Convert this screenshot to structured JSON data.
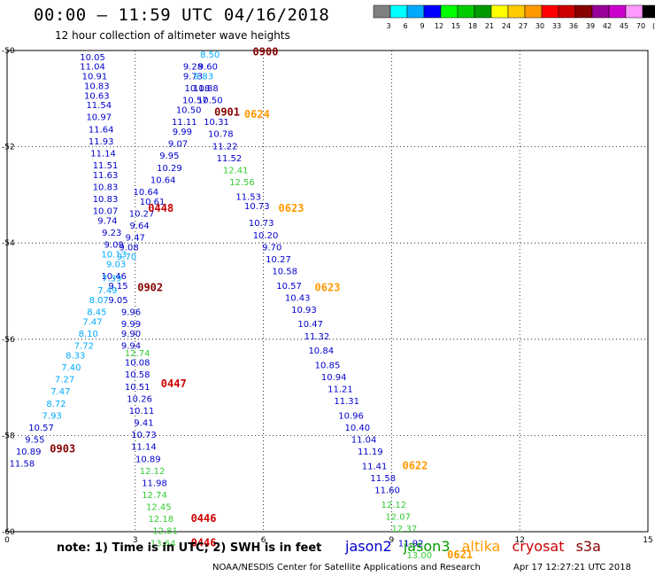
{
  "header": {
    "title": "00:00 – 11:59 UTC 04/16/2018",
    "subtitle": "12 hour collection of altimeter wave heights"
  },
  "colorbar": {
    "labels": [
      "3",
      "6",
      "9",
      "12",
      "15",
      "18",
      "21",
      "24",
      "27",
      "30",
      "33",
      "36",
      "39",
      "42",
      "45",
      "70",
      "(ft)"
    ],
    "colors": [
      "#808080",
      "#00ffff",
      "#00aaff",
      "#0000ff",
      "#00ff00",
      "#00cc00",
      "#009900",
      "#ffff00",
      "#ffcc00",
      "#ff9900",
      "#ff0000",
      "#cc0000",
      "#880000",
      "#990099",
      "#cc00cc",
      "#ff99ff",
      "#000000"
    ]
  },
  "footer": {
    "note": "note: 1) Time is in UTC; 2) SWH is in feet",
    "credit": "NOAA/NESDIS Center for Satellite Applications and Research",
    "timestamp": "Apr 17 12:27:21 UTC 2018",
    "legend": [
      {
        "label": "jason2",
        "color": "#0000cc"
      },
      {
        "label": "jason3",
        "color": "#009900"
      },
      {
        "label": "altika",
        "color": "#ff9900"
      },
      {
        "label": "cryosat",
        "color": "#cc0000"
      },
      {
        "label": "s3a",
        "color": "#880000"
      }
    ]
  },
  "chart_data": {
    "type": "scatter",
    "xlim": [
      0,
      15
    ],
    "ylim": [
      -60,
      -50
    ],
    "x_ticks": [
      "0",
      "3",
      "6",
      "9",
      "12",
      "15"
    ],
    "y_ticks": [
      "-50",
      "-52",
      "-54",
      "-56",
      "-58",
      "-60"
    ],
    "grid": true,
    "points": [
      {
        "x": 2.0,
        "y": -50.2,
        "v": "10.05",
        "c": "#0000cc"
      },
      {
        "x": 2.0,
        "y": -50.4,
        "v": "11.04",
        "c": "#0000cc"
      },
      {
        "x": 2.05,
        "y": -50.6,
        "v": "10.91",
        "c": "#0000cc"
      },
      {
        "x": 2.1,
        "y": -50.8,
        "v": "10.83",
        "c": "#0000cc"
      },
      {
        "x": 2.1,
        "y": -51.0,
        "v": "10.63",
        "c": "#0000cc"
      },
      {
        "x": 2.15,
        "y": -51.2,
        "v": "11.54",
        "c": "#0000cc"
      },
      {
        "x": 2.15,
        "y": -51.45,
        "v": "10.97",
        "c": "#0000cc"
      },
      {
        "x": 2.2,
        "y": -51.7,
        "v": "11.64",
        "c": "#0000cc"
      },
      {
        "x": 2.2,
        "y": -51.95,
        "v": "11.93",
        "c": "#0000cc"
      },
      {
        "x": 2.25,
        "y": -52.2,
        "v": "11.14",
        "c": "#0000cc"
      },
      {
        "x": 2.3,
        "y": -52.45,
        "v": "11.51",
        "c": "#0000cc"
      },
      {
        "x": 2.3,
        "y": -52.65,
        "v": "11.63",
        "c": "#0000cc"
      },
      {
        "x": 2.3,
        "y": -52.9,
        "v": "10.83",
        "c": "#0000cc"
      },
      {
        "x": 2.3,
        "y": -53.15,
        "v": "10.83",
        "c": "#0000cc"
      },
      {
        "x": 2.3,
        "y": -53.4,
        "v": "10.07",
        "c": "#0000cc"
      },
      {
        "x": 2.35,
        "y": -53.6,
        "v": "9.74",
        "c": "#0000cc"
      },
      {
        "x": 2.45,
        "y": -53.85,
        "v": "9.23",
        "c": "#0000cc"
      },
      {
        "x": 2.5,
        "y": -54.1,
        "v": "9.09",
        "c": "#0000cc"
      },
      {
        "x": 2.5,
        "y": -54.3,
        "v": "10.13",
        "c": "#00aaff"
      },
      {
        "x": 2.55,
        "y": -54.5,
        "v": "9.03",
        "c": "#00aaff"
      },
      {
        "x": 2.5,
        "y": -54.75,
        "v": "10.46",
        "c": "#0000cc"
      },
      {
        "x": 2.45,
        "y": -54.8,
        "v": "7.39",
        "c": "#00aaff"
      },
      {
        "x": 2.6,
        "y": -54.95,
        "v": "9.15",
        "c": "#0000cc"
      },
      {
        "x": 2.35,
        "y": -55.05,
        "v": "7.49",
        "c": "#00aaff"
      },
      {
        "x": 2.15,
        "y": -55.25,
        "v": "8.07",
        "c": "#00aaff"
      },
      {
        "x": 2.6,
        "y": -55.25,
        "v": "9.05",
        "c": "#0000cc"
      },
      {
        "x": 2.1,
        "y": -55.5,
        "v": "8.45",
        "c": "#00aaff"
      },
      {
        "x": 2.9,
        "y": -55.5,
        "v": "9.96",
        "c": "#0000cc"
      },
      {
        "x": 2.0,
        "y": -55.7,
        "v": "7.47",
        "c": "#00aaff"
      },
      {
        "x": 2.9,
        "y": -55.75,
        "v": "9.99",
        "c": "#0000cc"
      },
      {
        "x": 1.9,
        "y": -55.95,
        "v": "8.10",
        "c": "#00aaff"
      },
      {
        "x": 2.9,
        "y": -55.95,
        "v": "9.90",
        "c": "#0000cc"
      },
      {
        "x": 1.8,
        "y": -56.2,
        "v": "7.72",
        "c": "#00aaff"
      },
      {
        "x": 2.9,
        "y": -56.2,
        "v": "9.94",
        "c": "#0000cc"
      },
      {
        "x": 1.6,
        "y": -56.4,
        "v": "8.33",
        "c": "#00aaff"
      },
      {
        "x": 3.05,
        "y": -56.35,
        "v": "12.74",
        "c": "#33cc33"
      },
      {
        "x": 1.5,
        "y": -56.65,
        "v": "7.40",
        "c": "#00aaff"
      },
      {
        "x": 3.05,
        "y": -56.55,
        "v": "10.08",
        "c": "#0000cc"
      },
      {
        "x": 1.35,
        "y": -56.9,
        "v": "7.27",
        "c": "#00aaff"
      },
      {
        "x": 3.05,
        "y": -56.8,
        "v": "10.58",
        "c": "#0000cc"
      },
      {
        "x": 1.25,
        "y": -57.15,
        "v": "7.47",
        "c": "#00aaff"
      },
      {
        "x": 3.05,
        "y": -57.05,
        "v": "10.51",
        "c": "#0000cc"
      },
      {
        "x": 1.15,
        "y": -57.4,
        "v": "8.72",
        "c": "#00aaff"
      },
      {
        "x": 3.1,
        "y": -57.3,
        "v": "10.26",
        "c": "#0000cc"
      },
      {
        "x": 1.05,
        "y": -57.65,
        "v": "7.93",
        "c": "#00aaff"
      },
      {
        "x": 3.15,
        "y": -57.55,
        "v": "10.11",
        "c": "#0000cc"
      },
      {
        "x": 0.8,
        "y": -57.9,
        "v": "10.57",
        "c": "#0000cc"
      },
      {
        "x": 3.2,
        "y": -57.8,
        "v": "9.41",
        "c": "#0000cc"
      },
      {
        "x": 0.65,
        "y": -58.15,
        "v": "9.55",
        "c": "#0000cc"
      },
      {
        "x": 3.2,
        "y": -58.05,
        "v": "10.73",
        "c": "#0000cc"
      },
      {
        "x": 0.5,
        "y": -58.4,
        "v": "10.89",
        "c": "#0000cc"
      },
      {
        "x": 3.2,
        "y": -58.3,
        "v": "11.14",
        "c": "#0000cc"
      },
      {
        "x": 0.35,
        "y": -58.65,
        "v": "11.58",
        "c": "#0000cc"
      },
      {
        "x": 3.3,
        "y": -58.55,
        "v": "10.89",
        "c": "#0000cc"
      },
      {
        "x": 3.4,
        "y": -58.8,
        "v": "12.12",
        "c": "#33cc33"
      },
      {
        "x": 3.45,
        "y": -59.05,
        "v": "11.98",
        "c": "#0000cc"
      },
      {
        "x": 3.45,
        "y": -59.3,
        "v": "12.74",
        "c": "#33cc33"
      },
      {
        "x": 3.55,
        "y": -59.55,
        "v": "12.45",
        "c": "#33cc33"
      },
      {
        "x": 3.6,
        "y": -59.8,
        "v": "12.18",
        "c": "#33cc33"
      },
      {
        "x": 3.7,
        "y": -60.05,
        "v": "12.81",
        "c": "#33cc33"
      },
      {
        "x": 3.65,
        "y": -60.3,
        "v": "13.64",
        "c": "#33cc33"
      },
      {
        "x": 3.4,
        "y": -53.2,
        "v": "10.61",
        "c": "#0000cc"
      },
      {
        "x": 3.25,
        "y": -53.0,
        "v": "10.64",
        "c": "#0000cc"
      },
      {
        "x": 3.65,
        "y": -52.75,
        "v": "10.64",
        "c": "#0000cc"
      },
      {
        "x": 3.8,
        "y": -52.5,
        "v": "10.29",
        "c": "#0000cc"
      },
      {
        "x": 3.8,
        "y": -52.25,
        "v": "9.95",
        "c": "#0000cc"
      },
      {
        "x": 4.0,
        "y": -52.0,
        "v": "9.07",
        "c": "#0000cc"
      },
      {
        "x": 4.1,
        "y": -51.75,
        "v": "9.99",
        "c": "#0000cc"
      },
      {
        "x": 4.15,
        "y": -51.55,
        "v": "11.11",
        "c": "#0000cc"
      },
      {
        "x": 4.25,
        "y": -51.3,
        "v": "10.50",
        "c": "#0000cc"
      },
      {
        "x": 4.4,
        "y": -51.1,
        "v": "10.57",
        "c": "#0000cc"
      },
      {
        "x": 4.45,
        "y": -50.85,
        "v": "10.18",
        "c": "#0000cc"
      },
      {
        "x": 4.35,
        "y": -50.6,
        "v": "9.73",
        "c": "#0000cc"
      },
      {
        "x": 4.35,
        "y": -50.4,
        "v": "9.28",
        "c": "#0000cc"
      },
      {
        "x": 4.75,
        "y": -50.15,
        "v": "8.50",
        "c": "#00aaff"
      },
      {
        "x": 4.7,
        "y": -50.4,
        "v": "9.60",
        "c": "#0000cc"
      },
      {
        "x": 4.6,
        "y": -50.6,
        "v": "9.83",
        "c": "#00aaff"
      },
      {
        "x": 4.65,
        "y": -50.85,
        "v": "10.88",
        "c": "#0000cc"
      },
      {
        "x": 4.75,
        "y": -51.1,
        "v": "10.50",
        "c": "#0000cc"
      },
      {
        "x": 4.9,
        "y": -51.55,
        "v": "10.31",
        "c": "#0000cc"
      },
      {
        "x": 5.0,
        "y": -51.8,
        "v": "10.78",
        "c": "#0000cc"
      },
      {
        "x": 5.1,
        "y": -52.05,
        "v": "11.22",
        "c": "#0000cc"
      },
      {
        "x": 5.2,
        "y": -52.3,
        "v": "11.52",
        "c": "#0000cc"
      },
      {
        "x": 5.35,
        "y": -52.55,
        "v": "12.41",
        "c": "#33cc33"
      },
      {
        "x": 5.5,
        "y": -52.8,
        "v": "12.56",
        "c": "#33cc33"
      },
      {
        "x": 5.65,
        "y": -53.1,
        "v": "11.53",
        "c": "#0000cc"
      },
      {
        "x": 5.85,
        "y": -53.3,
        "v": "10.73",
        "c": "#0000cc"
      },
      {
        "x": 5.95,
        "y": -53.65,
        "v": "10.73",
        "c": "#0000cc"
      },
      {
        "x": 6.05,
        "y": -53.9,
        "v": "10.20",
        "c": "#0000cc"
      },
      {
        "x": 6.2,
        "y": -54.15,
        "v": "9.70",
        "c": "#0000cc"
      },
      {
        "x": 6.35,
        "y": -54.4,
        "v": "10.27",
        "c": "#0000cc"
      },
      {
        "x": 6.5,
        "y": -54.65,
        "v": "10.58",
        "c": "#0000cc"
      },
      {
        "x": 6.6,
        "y": -54.95,
        "v": "10.57",
        "c": "#0000cc"
      },
      {
        "x": 6.8,
        "y": -55.2,
        "v": "10.43",
        "c": "#0000cc"
      },
      {
        "x": 6.95,
        "y": -55.45,
        "v": "10.93",
        "c": "#0000cc"
      },
      {
        "x": 7.1,
        "y": -55.75,
        "v": "10.47",
        "c": "#0000cc"
      },
      {
        "x": 7.25,
        "y": -56.0,
        "v": "11.32",
        "c": "#0000cc"
      },
      {
        "x": 7.35,
        "y": -56.3,
        "v": "10.84",
        "c": "#0000cc"
      },
      {
        "x": 7.5,
        "y": -56.6,
        "v": "10.85",
        "c": "#0000cc"
      },
      {
        "x": 7.65,
        "y": -56.85,
        "v": "10.94",
        "c": "#0000cc"
      },
      {
        "x": 7.8,
        "y": -57.1,
        "v": "11.21",
        "c": "#0000cc"
      },
      {
        "x": 7.95,
        "y": -57.35,
        "v": "11.31",
        "c": "#0000cc"
      },
      {
        "x": 8.05,
        "y": -57.65,
        "v": "10.96",
        "c": "#0000cc"
      },
      {
        "x": 8.2,
        "y": -57.9,
        "v": "10.40",
        "c": "#0000cc"
      },
      {
        "x": 8.35,
        "y": -58.15,
        "v": "11.04",
        "c": "#0000cc"
      },
      {
        "x": 8.5,
        "y": -58.4,
        "v": "11.19",
        "c": "#0000cc"
      },
      {
        "x": 8.6,
        "y": -58.7,
        "v": "11.41",
        "c": "#0000cc"
      },
      {
        "x": 8.8,
        "y": -58.95,
        "v": "11.58",
        "c": "#0000cc"
      },
      {
        "x": 8.9,
        "y": -59.2,
        "v": "11.60",
        "c": "#0000cc"
      },
      {
        "x": 9.05,
        "y": -59.5,
        "v": "12.12",
        "c": "#33cc33"
      },
      {
        "x": 9.15,
        "y": -59.75,
        "v": "12.07",
        "c": "#33cc33"
      },
      {
        "x": 9.3,
        "y": -60.0,
        "v": "12.37",
        "c": "#33cc33"
      },
      {
        "x": 9.45,
        "y": -60.3,
        "v": "11.92",
        "c": "#0000cc"
      },
      {
        "x": 9.65,
        "y": -60.55,
        "v": "13.00",
        "c": "#33cc33"
      },
      {
        "x": 3.15,
        "y": -53.45,
        "v": "10.27",
        "c": "#0000cc"
      },
      {
        "x": 3.1,
        "y": -53.7,
        "v": "9.64",
        "c": "#0000cc"
      },
      {
        "x": 3.0,
        "y": -53.95,
        "v": "9.47",
        "c": "#0000cc"
      },
      {
        "x": 2.85,
        "y": -54.15,
        "v": "9.08",
        "c": "#0000cc"
      },
      {
        "x": 2.8,
        "y": -54.35,
        "v": "9.70",
        "c": "#00aaff"
      }
    ],
    "time_labels": [
      {
        "x": 6.05,
        "y": -50.1,
        "t": "0900",
        "c": "#880000"
      },
      {
        "x": 5.15,
        "y": -51.35,
        "t": "0901",
        "c": "#880000"
      },
      {
        "x": 5.85,
        "y": -51.4,
        "t": "0624",
        "c": "#ff9900"
      },
      {
        "x": 3.6,
        "y": -53.35,
        "t": "0448",
        "c": "#cc0000"
      },
      {
        "x": 6.65,
        "y": -53.35,
        "t": "0623",
        "c": "#ff9900"
      },
      {
        "x": 3.35,
        "y": -55.0,
        "t": "0902",
        "c": "#880000"
      },
      {
        "x": 7.5,
        "y": -55.0,
        "t": "0623",
        "c": "#ff9900"
      },
      {
        "x": 3.9,
        "y": -57.0,
        "t": "0447",
        "c": "#cc0000"
      },
      {
        "x": 1.3,
        "y": -58.35,
        "t": "0903",
        "c": "#880000"
      },
      {
        "x": 9.55,
        "y": -58.7,
        "t": "0622",
        "c": "#ff9900"
      },
      {
        "x": 4.6,
        "y": -59.8,
        "t": "0446",
        "c": "#cc0000"
      },
      {
        "x": 4.6,
        "y": -60.3,
        "t": "0446",
        "c": "#cc0000"
      },
      {
        "x": 10.6,
        "y": -60.55,
        "t": "0621",
        "c": "#ff9900"
      }
    ]
  }
}
